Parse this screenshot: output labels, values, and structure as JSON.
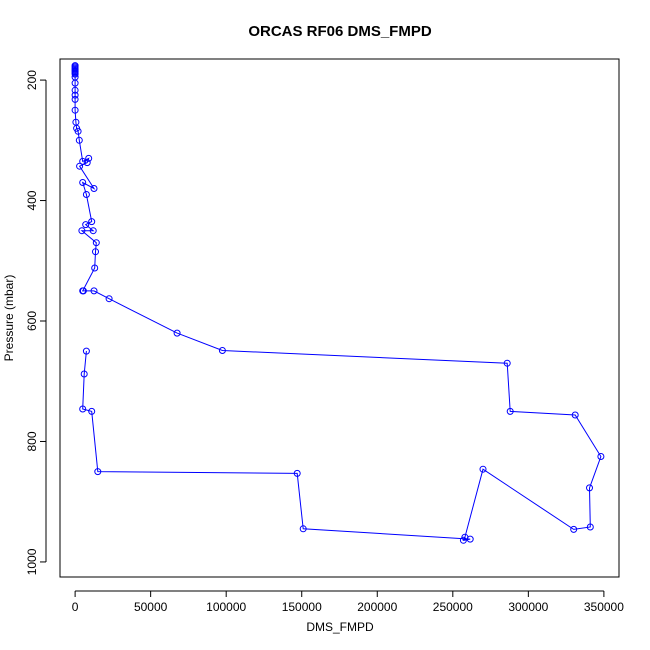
{
  "chart_data": {
    "type": "line",
    "title": "ORCAS RF06 DMS_FMPD",
    "xlabel": "DMS_FMPD",
    "ylabel": "Pressure (mbar)",
    "xlim": [
      -10000,
      360000
    ],
    "ylim": [
      1025,
      165
    ],
    "y_reversed": true,
    "grid": false,
    "x_ticks": [
      {
        "value": 0,
        "label": "0"
      },
      {
        "value": 50000,
        "label": "50000"
      },
      {
        "value": 100000,
        "label": "100000"
      },
      {
        "value": 150000,
        "label": "150000"
      },
      {
        "value": 200000,
        "label": "200000"
      },
      {
        "value": 250000,
        "label": "250000"
      },
      {
        "value": 300000,
        "label": "300000"
      },
      {
        "value": 350000,
        "label": "350000"
      }
    ],
    "y_ticks": [
      {
        "value": 200,
        "label": "200"
      },
      {
        "value": 400,
        "label": "400"
      },
      {
        "value": 600,
        "label": "600"
      },
      {
        "value": 800,
        "label": "800"
      },
      {
        "value": 1000,
        "label": "1000"
      }
    ],
    "series": [
      {
        "color": "#0000ff",
        "marker": "open-circle",
        "x": [
          0,
          0,
          0,
          0,
          0,
          0,
          0,
          0,
          0,
          0,
          0,
          0,
          0,
          0,
          500,
          1000,
          2000,
          2800,
          5000,
          9000,
          8000,
          3000,
          12500,
          5000,
          7500,
          11000,
          7000,
          12000,
          4500,
          14000,
          13500,
          13000,
          5000,
          5500,
          12500,
          22500,
          67500,
          97500,
          286000,
          288000,
          331000,
          348000,
          340500,
          341000,
          330000,
          270000,
          258000,
          257000,
          261500,
          151000,
          147000,
          15000,
          11000,
          5000,
          6000,
          7500
        ],
        "y": [
          176,
          178,
          180,
          182,
          184,
          186,
          188,
          190,
          195,
          205,
          217,
          225,
          232,
          250,
          270,
          280,
          285,
          300,
          335,
          330,
          337,
          343,
          380,
          370,
          390,
          435,
          440,
          450,
          450,
          470,
          485,
          512,
          550,
          550,
          550,
          563,
          620,
          649,
          670,
          750,
          756,
          825,
          877,
          942,
          946,
          846,
          959,
          964,
          962,
          945,
          853,
          850,
          750,
          746,
          688,
          650
        ]
      }
    ]
  }
}
